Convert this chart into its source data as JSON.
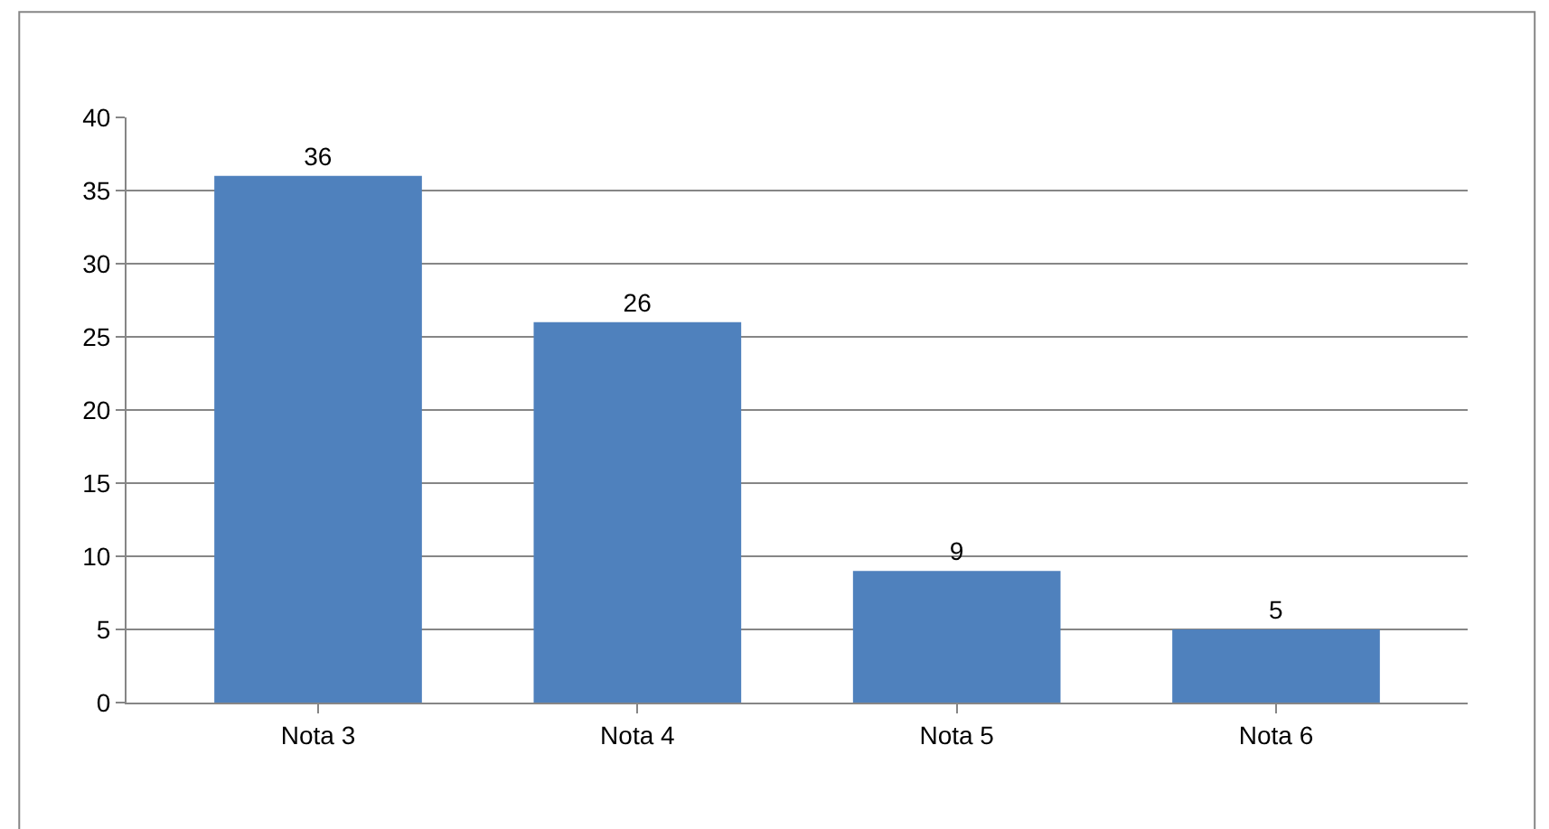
{
  "chart_data": {
    "type": "bar",
    "categories": [
      "Nota 3",
      "Nota 4",
      "Nota 5",
      "Nota 6"
    ],
    "values": [
      36,
      26,
      9,
      5
    ],
    "color": "#4f81bd",
    "ylim": [
      0,
      40
    ],
    "yticks": [
      0,
      5,
      10,
      15,
      20,
      25,
      30,
      35,
      40
    ],
    "grid": "y",
    "data_labels": true,
    "legend": false
  }
}
